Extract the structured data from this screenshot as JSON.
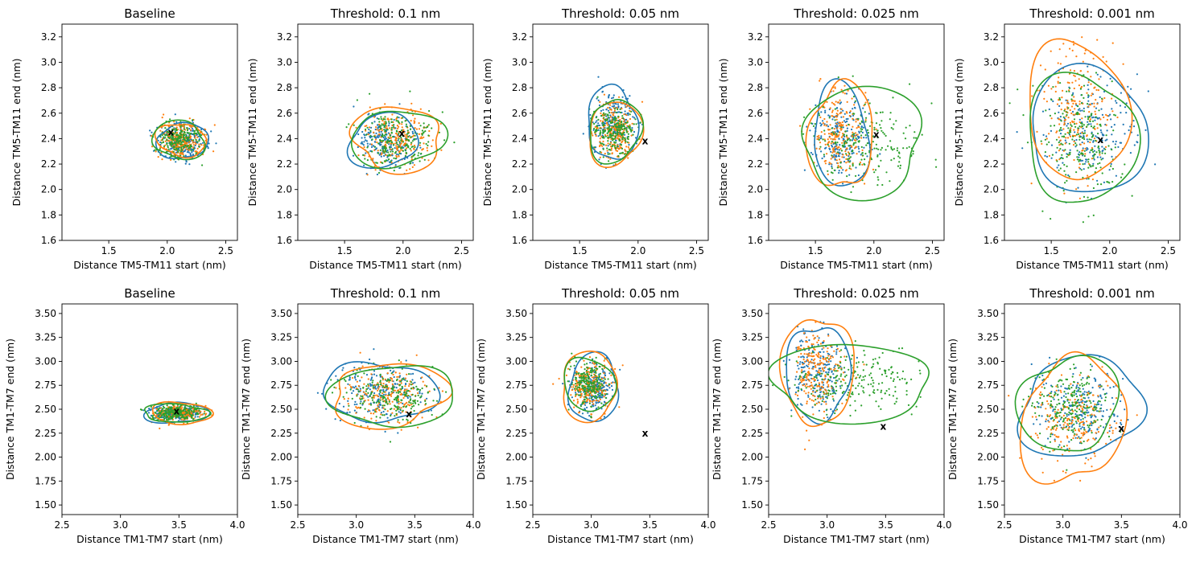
{
  "colors": {
    "blue": "#1f77b4",
    "orange": "#ff7f0e",
    "green": "#2ca02c",
    "marker": "#000000"
  },
  "marker_label": "x",
  "chart_data": [
    {
      "type": "scatter",
      "title": "Baseline",
      "xlabel": "Distance TM5-TM11 start (nm)",
      "ylabel": "Distance TM5-TM11 end (nm)",
      "xlim": [
        1.1,
        2.6
      ],
      "ylim": [
        1.6,
        3.3
      ],
      "xticks": [
        "1.5",
        "2.0",
        "2.5"
      ],
      "yticks": [
        "1.6",
        "1.8",
        "2.0",
        "2.2",
        "2.4",
        "2.6",
        "2.8",
        "3.0",
        "3.2"
      ],
      "marker_point": [
        2.03,
        2.45
      ],
      "series": [
        {
          "color": "blue",
          "center": [
            2.13,
            2.38
          ],
          "spread": [
            0.11,
            0.07
          ],
          "contour_radius": [
            0.22,
            0.14
          ]
        },
        {
          "color": "orange",
          "center": [
            2.12,
            2.39
          ],
          "spread": [
            0.1,
            0.07
          ],
          "contour_radius": [
            0.21,
            0.13
          ]
        },
        {
          "color": "green",
          "center": [
            2.1,
            2.39
          ],
          "spread": [
            0.1,
            0.07
          ],
          "contour_radius": [
            0.22,
            0.15
          ]
        }
      ]
    },
    {
      "type": "scatter",
      "title": "Threshold: 0.1 nm",
      "xlabel": "Distance TM5-TM11 start (nm)",
      "ylabel": "Distance TM5-TM11 end (nm)",
      "xlim": [
        1.1,
        2.6
      ],
      "ylim": [
        1.6,
        3.3
      ],
      "xticks": [
        "1.5",
        "2.0",
        "2.5"
      ],
      "yticks": [
        "1.6",
        "1.8",
        "2.0",
        "2.2",
        "2.4",
        "2.6",
        "2.8",
        "3.0",
        "3.2"
      ],
      "marker_point": [
        1.99,
        2.44
      ],
      "series": [
        {
          "color": "blue",
          "center": [
            1.83,
            2.38
          ],
          "spread": [
            0.12,
            0.1
          ],
          "contour_radius": [
            0.28,
            0.22
          ]
        },
        {
          "color": "orange",
          "center": [
            1.95,
            2.4
          ],
          "spread": [
            0.15,
            0.11
          ],
          "contour_radius": [
            0.4,
            0.24
          ]
        },
        {
          "color": "green",
          "center": [
            1.95,
            2.4
          ],
          "spread": [
            0.16,
            0.11
          ],
          "contour_radius": [
            0.4,
            0.22
          ]
        }
      ]
    },
    {
      "type": "scatter",
      "title": "Threshold: 0.05 nm",
      "xlabel": "Distance TM5-TM11 start (nm)",
      "ylabel": "Distance TM5-TM11 end (nm)",
      "xlim": [
        1.1,
        2.6
      ],
      "ylim": [
        1.6,
        3.3
      ],
      "xticks": [
        "1.5",
        "2.0",
        "2.5"
      ],
      "yticks": [
        "1.6",
        "1.8",
        "2.0",
        "2.2",
        "2.4",
        "2.6",
        "2.8",
        "3.0",
        "3.2"
      ],
      "marker_point": [
        2.06,
        2.38
      ],
      "series": [
        {
          "color": "blue",
          "center": [
            1.78,
            2.52
          ],
          "spread": [
            0.09,
            0.12
          ],
          "contour_radius": [
            0.22,
            0.28
          ]
        },
        {
          "color": "orange",
          "center": [
            1.8,
            2.44
          ],
          "spread": [
            0.09,
            0.11
          ],
          "contour_radius": [
            0.21,
            0.27
          ]
        },
        {
          "color": "green",
          "center": [
            1.8,
            2.46
          ],
          "spread": [
            0.09,
            0.1
          ],
          "contour_radius": [
            0.21,
            0.26
          ]
        }
      ]
    },
    {
      "type": "scatter",
      "title": "Threshold: 0.025 nm",
      "xlabel": "Distance TM5-TM11 start (nm)",
      "ylabel": "Distance TM5-TM11 end (nm)",
      "xlim": [
        1.1,
        2.6
      ],
      "ylim": [
        1.6,
        3.3
      ],
      "xticks": [
        "1.5",
        "2.0",
        "2.5"
      ],
      "yticks": [
        "1.6",
        "1.8",
        "2.0",
        "2.2",
        "2.4",
        "2.6",
        "2.8",
        "3.0",
        "3.2"
      ],
      "marker_point": [
        2.02,
        2.43
      ],
      "series": [
        {
          "color": "blue",
          "center": [
            1.72,
            2.42
          ],
          "spread": [
            0.12,
            0.15
          ],
          "contour_radius": [
            0.25,
            0.38
          ]
        },
        {
          "color": "orange",
          "center": [
            1.72,
            2.42
          ],
          "spread": [
            0.12,
            0.16
          ],
          "contour_radius": [
            0.26,
            0.44
          ]
        },
        {
          "color": "green",
          "center": [
            1.9,
            2.38
          ],
          "spread": [
            0.22,
            0.16
          ],
          "contour_radius": [
            0.55,
            0.4
          ]
        }
      ]
    },
    {
      "type": "scatter",
      "title": "Threshold: 0.001 nm",
      "xlabel": "Distance TM5-TM11 start (nm)",
      "ylabel": "Distance TM5-TM11 end (nm)",
      "xlim": [
        1.1,
        2.6
      ],
      "ylim": [
        1.6,
        3.3
      ],
      "xticks": [
        "1.5",
        "2.0",
        "2.5"
      ],
      "yticks": [
        "1.6",
        "1.8",
        "2.0",
        "2.2",
        "2.4",
        "2.6",
        "2.8",
        "3.0",
        "3.2"
      ],
      "marker_point": [
        1.92,
        2.39
      ],
      "series": [
        {
          "color": "blue",
          "center": [
            1.82,
            2.46
          ],
          "spread": [
            0.2,
            0.2
          ],
          "contour_radius": [
            0.55,
            0.45
          ]
        },
        {
          "color": "orange",
          "center": [
            1.72,
            2.62
          ],
          "spread": [
            0.16,
            0.24
          ],
          "contour_radius": [
            0.4,
            0.58
          ]
        },
        {
          "color": "green",
          "center": [
            1.75,
            2.4
          ],
          "spread": [
            0.18,
            0.22
          ],
          "contour_radius": [
            0.42,
            0.56
          ]
        }
      ]
    },
    {
      "type": "scatter",
      "title": "Baseline",
      "xlabel": "Distance TM1-TM7 start (nm)",
      "ylabel": "Distance TM1-TM7 end (nm)",
      "xlim": [
        2.5,
        4.0
      ],
      "ylim": [
        1.4,
        3.6
      ],
      "xticks": [
        "2.5",
        "3.0",
        "3.5",
        "4.0"
      ],
      "yticks": [
        "1.50",
        "1.75",
        "2.00",
        "2.25",
        "2.50",
        "2.75",
        "3.00",
        "3.25",
        "3.50"
      ],
      "marker_point": [
        3.48,
        2.48
      ],
      "series": [
        {
          "color": "blue",
          "center": [
            3.48,
            2.46
          ],
          "spread": [
            0.1,
            0.04
          ],
          "contour_radius": [
            0.26,
            0.11
          ]
        },
        {
          "color": "orange",
          "center": [
            3.52,
            2.46
          ],
          "spread": [
            0.1,
            0.04
          ],
          "contour_radius": [
            0.24,
            0.12
          ]
        },
        {
          "color": "green",
          "center": [
            3.47,
            2.46
          ],
          "spread": [
            0.1,
            0.04
          ],
          "contour_radius": [
            0.26,
            0.1
          ]
        }
      ]
    },
    {
      "type": "scatter",
      "title": "Threshold: 0.1 nm",
      "xlabel": "Distance TM1-TM7 start (nm)",
      "ylabel": "Distance TM1-TM7 end (nm)",
      "xlim": [
        2.5,
        4.0
      ],
      "ylim": [
        1.4,
        3.6
      ],
      "xticks": [
        "2.5",
        "3.0",
        "3.5",
        "4.0"
      ],
      "yticks": [
        "1.50",
        "1.75",
        "2.00",
        "2.25",
        "2.50",
        "2.75",
        "3.00",
        "3.25",
        "3.50"
      ],
      "marker_point": [
        3.45,
        2.45
      ],
      "series": [
        {
          "color": "blue",
          "center": [
            3.2,
            2.68
          ],
          "spread": [
            0.18,
            0.14
          ],
          "contour_radius": [
            0.45,
            0.33
          ]
        },
        {
          "color": "orange",
          "center": [
            3.28,
            2.65
          ],
          "spread": [
            0.18,
            0.14
          ],
          "contour_radius": [
            0.5,
            0.32
          ]
        },
        {
          "color": "green",
          "center": [
            3.32,
            2.64
          ],
          "spread": [
            0.18,
            0.14
          ],
          "contour_radius": [
            0.5,
            0.34
          ]
        }
      ]
    },
    {
      "type": "scatter",
      "title": "Threshold: 0.05 nm",
      "xlabel": "Distance TM1-TM7 start (nm)",
      "ylabel": "Distance TM1-TM7 end (nm)",
      "xlim": [
        2.5,
        4.0
      ],
      "ylim": [
        1.4,
        3.6
      ],
      "xticks": [
        "2.5",
        "3.0",
        "3.5",
        "4.0"
      ],
      "yticks": [
        "1.50",
        "1.75",
        "2.00",
        "2.25",
        "2.50",
        "2.75",
        "3.00",
        "3.25",
        "3.50"
      ],
      "marker_point": [
        3.46,
        2.25
      ],
      "series": [
        {
          "color": "blue",
          "center": [
            3.02,
            2.72
          ],
          "spread": [
            0.08,
            0.13
          ],
          "contour_radius": [
            0.22,
            0.34
          ]
        },
        {
          "color": "orange",
          "center": [
            2.98,
            2.74
          ],
          "spread": [
            0.09,
            0.13
          ],
          "contour_radius": [
            0.25,
            0.34
          ]
        },
        {
          "color": "green",
          "center": [
            2.98,
            2.76
          ],
          "spread": [
            0.08,
            0.12
          ],
          "contour_radius": [
            0.2,
            0.3
          ]
        }
      ]
    },
    {
      "type": "scatter",
      "title": "Threshold: 0.025 nm",
      "xlabel": "Distance TM1-TM7 start (nm)",
      "ylabel": "Distance TM1-TM7 end (nm)",
      "xlim": [
        2.5,
        4.0
      ],
      "ylim": [
        1.4,
        3.6
      ],
      "xticks": [
        "2.5",
        "3.0",
        "3.5",
        "4.0"
      ],
      "yticks": [
        "1.50",
        "1.75",
        "2.00",
        "2.25",
        "2.50",
        "2.75",
        "3.00",
        "3.25",
        "3.50"
      ],
      "marker_point": [
        3.48,
        2.32
      ],
      "series": [
        {
          "color": "blue",
          "center": [
            2.92,
            2.88
          ],
          "spread": [
            0.1,
            0.2
          ],
          "contour_radius": [
            0.26,
            0.52
          ]
        },
        {
          "color": "orange",
          "center": [
            2.92,
            2.9
          ],
          "spread": [
            0.1,
            0.22
          ],
          "contour_radius": [
            0.28,
            0.62
          ]
        },
        {
          "color": "green",
          "center": [
            3.2,
            2.78
          ],
          "spread": [
            0.25,
            0.15
          ],
          "contour_radius": [
            0.72,
            0.38
          ]
        }
      ]
    },
    {
      "type": "scatter",
      "title": "Threshold: 0.001 nm",
      "xlabel": "Distance TM1-TM7 start (nm)",
      "ylabel": "Distance TM1-TM7 end (nm)",
      "xlim": [
        2.5,
        4.0
      ],
      "ylim": [
        1.4,
        3.6
      ],
      "xticks": [
        "2.5",
        "3.0",
        "3.5",
        "4.0"
      ],
      "yticks": [
        "1.50",
        "1.75",
        "2.00",
        "2.25",
        "2.50",
        "2.75",
        "3.00",
        "3.25",
        "3.50"
      ],
      "marker_point": [
        3.5,
        2.3
      ],
      "series": [
        {
          "color": "blue",
          "center": [
            3.15,
            2.52
          ],
          "spread": [
            0.18,
            0.2
          ],
          "contour_radius": [
            0.52,
            0.52
          ]
        },
        {
          "color": "orange",
          "center": [
            3.08,
            2.38
          ],
          "spread": [
            0.17,
            0.22
          ],
          "contour_radius": [
            0.42,
            0.68
          ]
        },
        {
          "color": "green",
          "center": [
            3.05,
            2.55
          ],
          "spread": [
            0.16,
            0.2
          ],
          "contour_radius": [
            0.4,
            0.52
          ]
        }
      ]
    }
  ]
}
